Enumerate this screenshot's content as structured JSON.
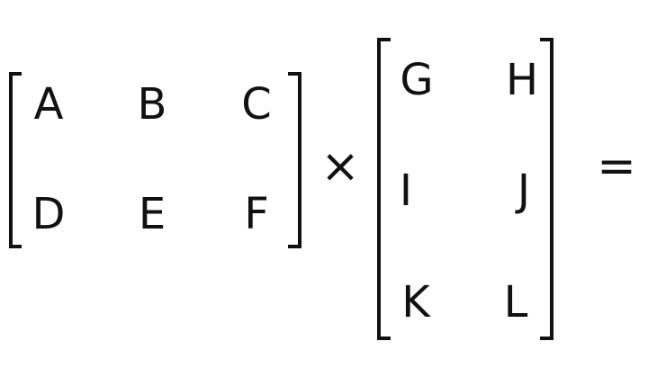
{
  "matrix_a": {
    "cells": [
      "A",
      "B",
      "C",
      "D",
      "E",
      "F"
    ]
  },
  "matrix_b": {
    "cells": [
      "G",
      "H",
      "I",
      "J",
      "K",
      "L"
    ]
  },
  "operators": {
    "multiply": "×",
    "equals": "="
  }
}
